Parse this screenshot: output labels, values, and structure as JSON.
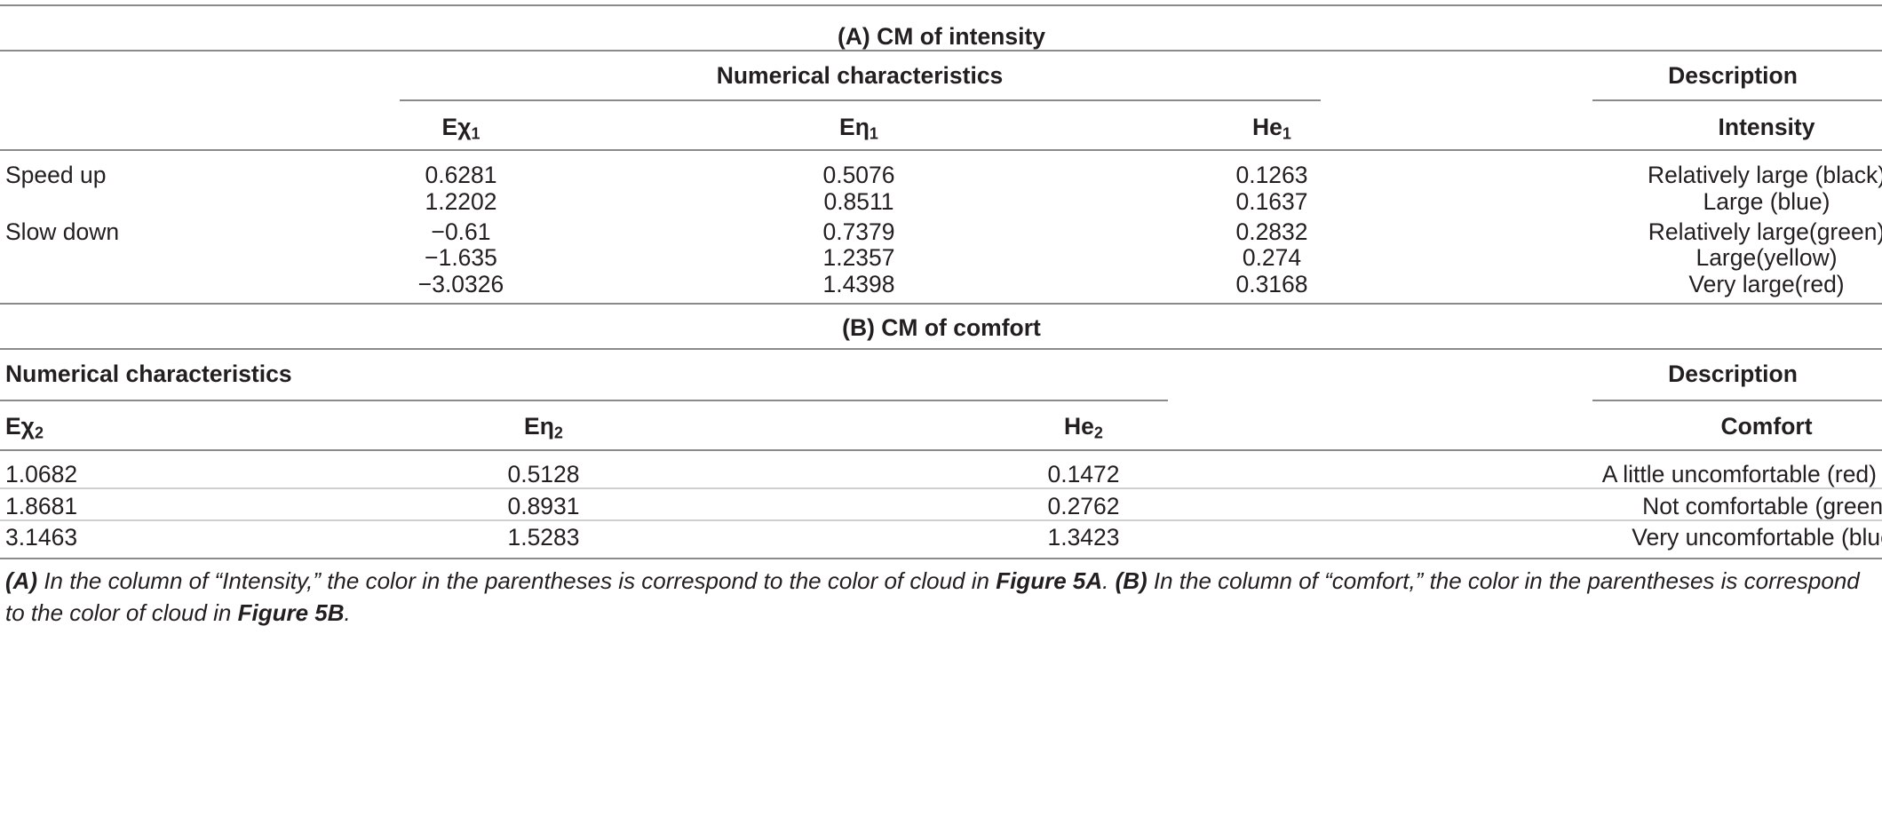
{
  "section_a": {
    "title": "(A) CM of intensity",
    "group_header": "Numerical characteristics",
    "description_header": "Description",
    "columns": {
      "ex": {
        "main": "Eχ",
        "sub": "1"
      },
      "en": {
        "main": "Eη",
        "sub": "1"
      },
      "he": {
        "main": "He",
        "sub": "1"
      },
      "desc": "Intensity"
    },
    "rows": [
      {
        "label": "Speed up",
        "ex": "0.6281",
        "en": "0.5076",
        "he": "0.1263",
        "desc": "Relatively large (black)"
      },
      {
        "label": "",
        "ex": "1.2202",
        "en": "0.8511",
        "he": "0.1637",
        "desc": "Large (blue)"
      },
      {
        "label": "Slow down",
        "ex": "−0.61",
        "en": "0.7379",
        "he": "0.2832",
        "desc": "Relatively large(green)"
      },
      {
        "label": "",
        "ex": "−1.635",
        "en": "1.2357",
        "he": "0.274",
        "desc": "Large(yellow)"
      },
      {
        "label": "",
        "ex": "−3.0326",
        "en": "1.4398",
        "he": "0.3168",
        "desc": "Very large(red)"
      }
    ]
  },
  "section_b": {
    "title": "(B) CM of comfort",
    "group_header": "Numerical characteristics",
    "description_header": "Description",
    "columns": {
      "ex": {
        "main": "Eχ",
        "sub": "2"
      },
      "en": {
        "main": "Eη",
        "sub": "2"
      },
      "he": {
        "main": "He",
        "sub": "2"
      },
      "desc": "Comfort"
    },
    "rows": [
      {
        "ex": "1.0682",
        "en": "0.5128",
        "he": "0.1472",
        "desc": "A little uncomfortable (red)"
      },
      {
        "ex": "1.8681",
        "en": "0.8931",
        "he": "0.2762",
        "desc": "Not comfortable (green)"
      },
      {
        "ex": "3.1463",
        "en": "1.5283",
        "he": "1.3423",
        "desc": "Very uncomfortable (blue)"
      }
    ]
  },
  "footnote": {
    "a_marker": "(A)",
    "a_text_1": " In the column of “Intensity,” the color in the parentheses is correspond to the color of cloud in ",
    "a_ref": "Figure 5A",
    "a_text_2": ". ",
    "b_marker": "(B)",
    "b_text_1": " In the column of “comfort,” the color in the parentheses is correspond to the color of cloud in ",
    "b_ref": "Figure 5B",
    "b_text_2": "."
  }
}
